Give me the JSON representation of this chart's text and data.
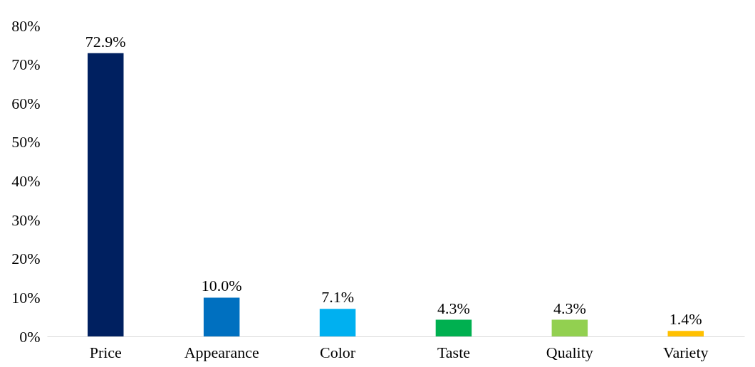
{
  "chart_data": {
    "type": "bar",
    "categories": [
      "Price",
      "Appearance",
      "Color",
      "Taste",
      "Quality",
      "Variety"
    ],
    "values": [
      72.9,
      10.0,
      7.1,
      4.3,
      4.3,
      1.4
    ],
    "colors": [
      "#002060",
      "#0070c0",
      "#00b0f0",
      "#00b050",
      "#92d050",
      "#ffc000"
    ],
    "value_labels": [
      "72.9%",
      "10.0%",
      "7.1%",
      "4.3%",
      "4.3%",
      "1.4%"
    ],
    "ylim": [
      0,
      80
    ],
    "yticks": [
      {
        "value": 0,
        "label": "0%"
      },
      {
        "value": 10,
        "label": "10%"
      },
      {
        "value": 20,
        "label": "20%"
      },
      {
        "value": 30,
        "label": "30%"
      },
      {
        "value": 40,
        "label": "40%"
      },
      {
        "value": 50,
        "label": "50%"
      },
      {
        "value": 60,
        "label": "60%"
      },
      {
        "value": 70,
        "label": "70%"
      },
      {
        "value": 80,
        "label": "80%"
      }
    ],
    "grid": false,
    "legend": false
  }
}
